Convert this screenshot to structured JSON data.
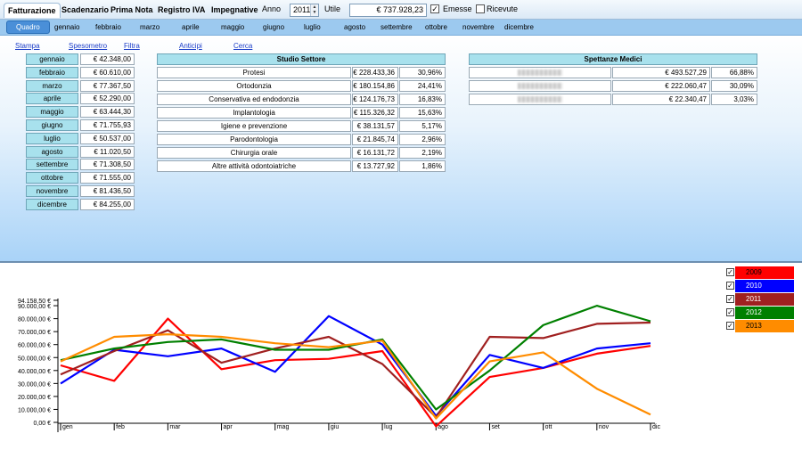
{
  "menu": {
    "tabs": [
      "Fatturazione",
      "Scadenzario",
      "Prima Nota",
      "Registro IVA",
      "Impegnative"
    ],
    "anno_label": "Anno",
    "anno_value": "2011",
    "utile_label": "Utile",
    "utile_value": "€ 737.928,23",
    "emesse_label": "Emesse",
    "ricevute_label": "Ricevute"
  },
  "months_bar": [
    "Quadro",
    "gennaio",
    "febbraio",
    "marzo",
    "aprile",
    "maggio",
    "giugno",
    "luglio",
    "agosto",
    "settembre",
    "ottobre",
    "novembre",
    "dicembre"
  ],
  "links": [
    "Stampa",
    "Spesometro",
    "Filtra",
    "Anticipi",
    "Cerca"
  ],
  "monthly": [
    {
      "month": "gennaio",
      "value": "€ 42.348,00"
    },
    {
      "month": "febbraio",
      "value": "€ 60.610,00"
    },
    {
      "month": "marzo",
      "value": "€ 77.367,50"
    },
    {
      "month": "aprile",
      "value": "€ 52.290,00"
    },
    {
      "month": "maggio",
      "value": "€ 63.444,30"
    },
    {
      "month": "giugno",
      "value": "€ 71.755,93"
    },
    {
      "month": "luglio",
      "value": "€ 50.537,00"
    },
    {
      "month": "agosto",
      "value": "€ 11.020,50"
    },
    {
      "month": "settembre",
      "value": "€ 71.308,50"
    },
    {
      "month": "ottobre",
      "value": "€ 71.555,00"
    },
    {
      "month": "novembre",
      "value": "€ 81.436,50"
    },
    {
      "month": "dicembre",
      "value": "€ 84.255,00"
    }
  ],
  "studio": {
    "title": "Studio Settore",
    "rows": [
      {
        "name": "Protesi",
        "value": "€ 228.433,36",
        "pct": "30,96%"
      },
      {
        "name": "Ortodonzia",
        "value": "€ 180.154,86",
        "pct": "24,41%"
      },
      {
        "name": "Conservativa ed endodonzia",
        "value": "€ 124.176,73",
        "pct": "16,83%"
      },
      {
        "name": "Implantologia",
        "value": "€ 115.326,32",
        "pct": "15,63%"
      },
      {
        "name": "Igiene e prevenzione",
        "value": "€ 38.131,57",
        "pct": "5,17%"
      },
      {
        "name": "Parodontologia",
        "value": "€ 21.845,74",
        "pct": "2,96%"
      },
      {
        "name": "Chirurgia orale",
        "value": "€ 16.131,72",
        "pct": "2,19%"
      },
      {
        "name": "Altre attività odontoiatriche",
        "value": "€ 13.727,92",
        "pct": "1,86%"
      }
    ]
  },
  "medici": {
    "title": "Spettanze Medici",
    "rows": [
      {
        "value": "€ 493.527,29",
        "pct": "66,88%"
      },
      {
        "value": "€ 222.060,47",
        "pct": "30,09%"
      },
      {
        "value": "€ 22.340,47",
        "pct": "3,03%"
      }
    ]
  },
  "colors": {
    "2009": "#ff0000",
    "2010": "#0000ff",
    "2011": "#a02020",
    "2012": "#008000",
    "2013": "#ff8c00"
  },
  "chart_data": {
    "type": "line",
    "categories": [
      "gen",
      "feb",
      "mar",
      "apr",
      "mag",
      "giu",
      "lug",
      "ago",
      "set",
      "ott",
      "nov",
      "dic"
    ],
    "y_ticks": [
      "0,00 €",
      "10.000,00 €",
      "20.000,00 €",
      "30.000,00 €",
      "40.000,00 €",
      "50.000,00 €",
      "60.000,00 €",
      "70.000,00 €",
      "80.000,00 €",
      "90.000,00 €",
      "94.158,50 €"
    ],
    "y_tick_values": [
      0,
      10000,
      20000,
      30000,
      40000,
      50000,
      60000,
      70000,
      80000,
      90000,
      94158.5
    ],
    "ylim": [
      0,
      94158.5
    ],
    "legend_position": "right",
    "series": [
      {
        "name": "2009",
        "color": "#ff0000",
        "values": [
          44000,
          32000,
          80000,
          41000,
          48000,
          49000,
          55000,
          -3000,
          35000,
          42000,
          53000,
          59000
        ]
      },
      {
        "name": "2010",
        "color": "#0000ff",
        "values": [
          30000,
          56000,
          51000,
          57000,
          39000,
          82000,
          60000,
          5000,
          52000,
          42000,
          57000,
          61000
        ]
      },
      {
        "name": "2011",
        "color": "#a02020",
        "values": [
          37000,
          55000,
          71000,
          46000,
          57000,
          66000,
          45000,
          4000,
          66000,
          65000,
          76000,
          77000
        ]
      },
      {
        "name": "2012",
        "color": "#008000",
        "values": [
          48000,
          57000,
          62000,
          64000,
          56000,
          56000,
          64000,
          10000,
          40000,
          75000,
          90000,
          78000
        ]
      },
      {
        "name": "2013",
        "color": "#ff8c00",
        "values": [
          47000,
          66000,
          68000,
          66000,
          61000,
          58000,
          63000,
          3000,
          47000,
          54000,
          26000,
          6000
        ]
      }
    ]
  }
}
